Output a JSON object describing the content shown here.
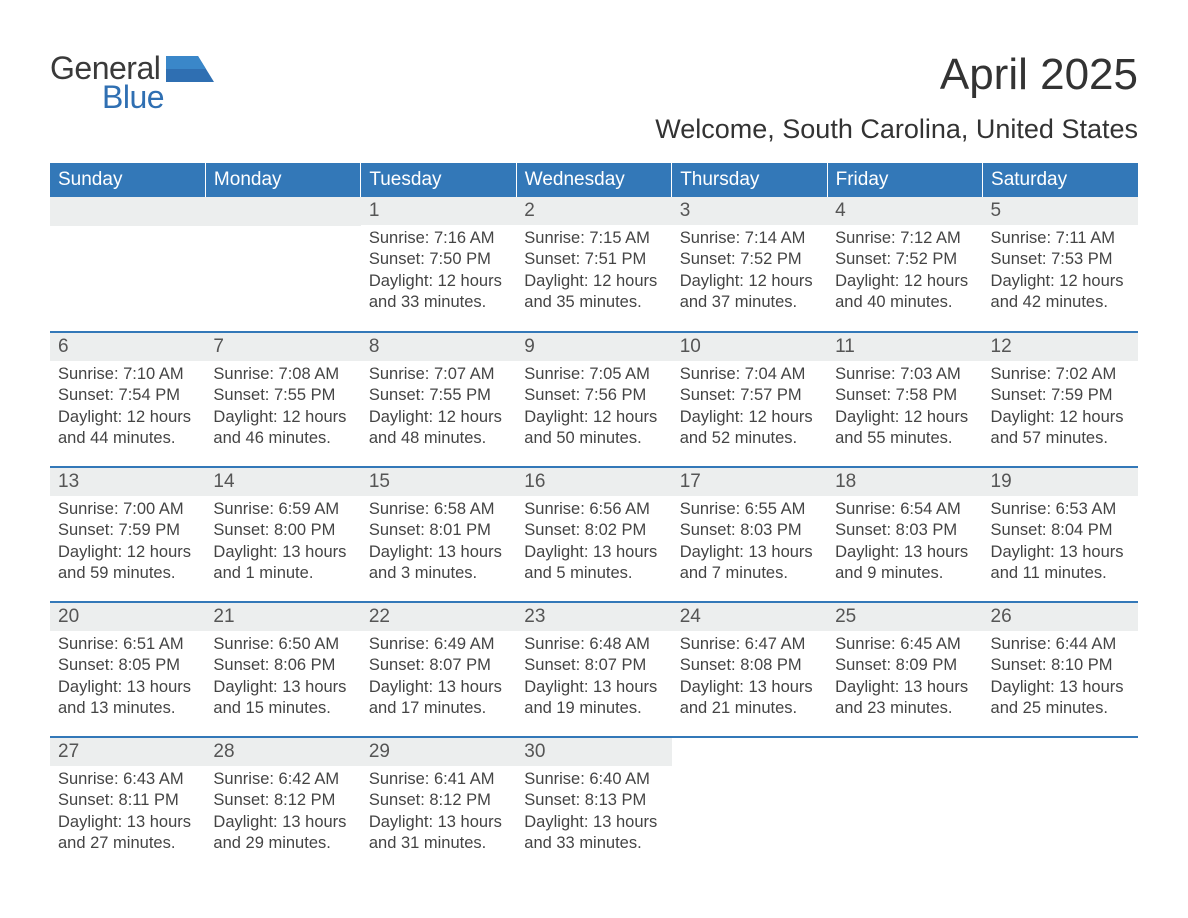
{
  "logo": {
    "general": "General",
    "blue": "Blue",
    "accent_color": "#2f6fb2",
    "text_color": "#3a3a3a"
  },
  "header": {
    "month_title": "April 2025",
    "location": "Welcome, South Carolina, United States"
  },
  "calendar": {
    "type": "table",
    "day_headers": [
      "Sunday",
      "Monday",
      "Tuesday",
      "Wednesday",
      "Thursday",
      "Friday",
      "Saturday"
    ],
    "header_bg": "#3378b8",
    "header_fg": "#ffffff",
    "daynum_bg": "#eceeee",
    "row_border_color": "#3378b8",
    "body_text_color": "#444444",
    "day_fontsize": 19,
    "body_fontsize": 16.5,
    "weeks": [
      [
        null,
        null,
        {
          "n": "1",
          "sunrise": "Sunrise: 7:16 AM",
          "sunset": "Sunset: 7:50 PM",
          "daylight": "Daylight: 12 hours and 33 minutes."
        },
        {
          "n": "2",
          "sunrise": "Sunrise: 7:15 AM",
          "sunset": "Sunset: 7:51 PM",
          "daylight": "Daylight: 12 hours and 35 minutes."
        },
        {
          "n": "3",
          "sunrise": "Sunrise: 7:14 AM",
          "sunset": "Sunset: 7:52 PM",
          "daylight": "Daylight: 12 hours and 37 minutes."
        },
        {
          "n": "4",
          "sunrise": "Sunrise: 7:12 AM",
          "sunset": "Sunset: 7:52 PM",
          "daylight": "Daylight: 12 hours and 40 minutes."
        },
        {
          "n": "5",
          "sunrise": "Sunrise: 7:11 AM",
          "sunset": "Sunset: 7:53 PM",
          "daylight": "Daylight: 12 hours and 42 minutes."
        }
      ],
      [
        {
          "n": "6",
          "sunrise": "Sunrise: 7:10 AM",
          "sunset": "Sunset: 7:54 PM",
          "daylight": "Daylight: 12 hours and 44 minutes."
        },
        {
          "n": "7",
          "sunrise": "Sunrise: 7:08 AM",
          "sunset": "Sunset: 7:55 PM",
          "daylight": "Daylight: 12 hours and 46 minutes."
        },
        {
          "n": "8",
          "sunrise": "Sunrise: 7:07 AM",
          "sunset": "Sunset: 7:55 PM",
          "daylight": "Daylight: 12 hours and 48 minutes."
        },
        {
          "n": "9",
          "sunrise": "Sunrise: 7:05 AM",
          "sunset": "Sunset: 7:56 PM",
          "daylight": "Daylight: 12 hours and 50 minutes."
        },
        {
          "n": "10",
          "sunrise": "Sunrise: 7:04 AM",
          "sunset": "Sunset: 7:57 PM",
          "daylight": "Daylight: 12 hours and 52 minutes."
        },
        {
          "n": "11",
          "sunrise": "Sunrise: 7:03 AM",
          "sunset": "Sunset: 7:58 PM",
          "daylight": "Daylight: 12 hours and 55 minutes."
        },
        {
          "n": "12",
          "sunrise": "Sunrise: 7:02 AM",
          "sunset": "Sunset: 7:59 PM",
          "daylight": "Daylight: 12 hours and 57 minutes."
        }
      ],
      [
        {
          "n": "13",
          "sunrise": "Sunrise: 7:00 AM",
          "sunset": "Sunset: 7:59 PM",
          "daylight": "Daylight: 12 hours and 59 minutes."
        },
        {
          "n": "14",
          "sunrise": "Sunrise: 6:59 AM",
          "sunset": "Sunset: 8:00 PM",
          "daylight": "Daylight: 13 hours and 1 minute."
        },
        {
          "n": "15",
          "sunrise": "Sunrise: 6:58 AM",
          "sunset": "Sunset: 8:01 PM",
          "daylight": "Daylight: 13 hours and 3 minutes."
        },
        {
          "n": "16",
          "sunrise": "Sunrise: 6:56 AM",
          "sunset": "Sunset: 8:02 PM",
          "daylight": "Daylight: 13 hours and 5 minutes."
        },
        {
          "n": "17",
          "sunrise": "Sunrise: 6:55 AM",
          "sunset": "Sunset: 8:03 PM",
          "daylight": "Daylight: 13 hours and 7 minutes."
        },
        {
          "n": "18",
          "sunrise": "Sunrise: 6:54 AM",
          "sunset": "Sunset: 8:03 PM",
          "daylight": "Daylight: 13 hours and 9 minutes."
        },
        {
          "n": "19",
          "sunrise": "Sunrise: 6:53 AM",
          "sunset": "Sunset: 8:04 PM",
          "daylight": "Daylight: 13 hours and 11 minutes."
        }
      ],
      [
        {
          "n": "20",
          "sunrise": "Sunrise: 6:51 AM",
          "sunset": "Sunset: 8:05 PM",
          "daylight": "Daylight: 13 hours and 13 minutes."
        },
        {
          "n": "21",
          "sunrise": "Sunrise: 6:50 AM",
          "sunset": "Sunset: 8:06 PM",
          "daylight": "Daylight: 13 hours and 15 minutes."
        },
        {
          "n": "22",
          "sunrise": "Sunrise: 6:49 AM",
          "sunset": "Sunset: 8:07 PM",
          "daylight": "Daylight: 13 hours and 17 minutes."
        },
        {
          "n": "23",
          "sunrise": "Sunrise: 6:48 AM",
          "sunset": "Sunset: 8:07 PM",
          "daylight": "Daylight: 13 hours and 19 minutes."
        },
        {
          "n": "24",
          "sunrise": "Sunrise: 6:47 AM",
          "sunset": "Sunset: 8:08 PM",
          "daylight": "Daylight: 13 hours and 21 minutes."
        },
        {
          "n": "25",
          "sunrise": "Sunrise: 6:45 AM",
          "sunset": "Sunset: 8:09 PM",
          "daylight": "Daylight: 13 hours and 23 minutes."
        },
        {
          "n": "26",
          "sunrise": "Sunrise: 6:44 AM",
          "sunset": "Sunset: 8:10 PM",
          "daylight": "Daylight: 13 hours and 25 minutes."
        }
      ],
      [
        {
          "n": "27",
          "sunrise": "Sunrise: 6:43 AM",
          "sunset": "Sunset: 8:11 PM",
          "daylight": "Daylight: 13 hours and 27 minutes."
        },
        {
          "n": "28",
          "sunrise": "Sunrise: 6:42 AM",
          "sunset": "Sunset: 8:12 PM",
          "daylight": "Daylight: 13 hours and 29 minutes."
        },
        {
          "n": "29",
          "sunrise": "Sunrise: 6:41 AM",
          "sunset": "Sunset: 8:12 PM",
          "daylight": "Daylight: 13 hours and 31 minutes."
        },
        {
          "n": "30",
          "sunrise": "Sunrise: 6:40 AM",
          "sunset": "Sunset: 8:13 PM",
          "daylight": "Daylight: 13 hours and 33 minutes."
        },
        null,
        null,
        null
      ]
    ]
  }
}
